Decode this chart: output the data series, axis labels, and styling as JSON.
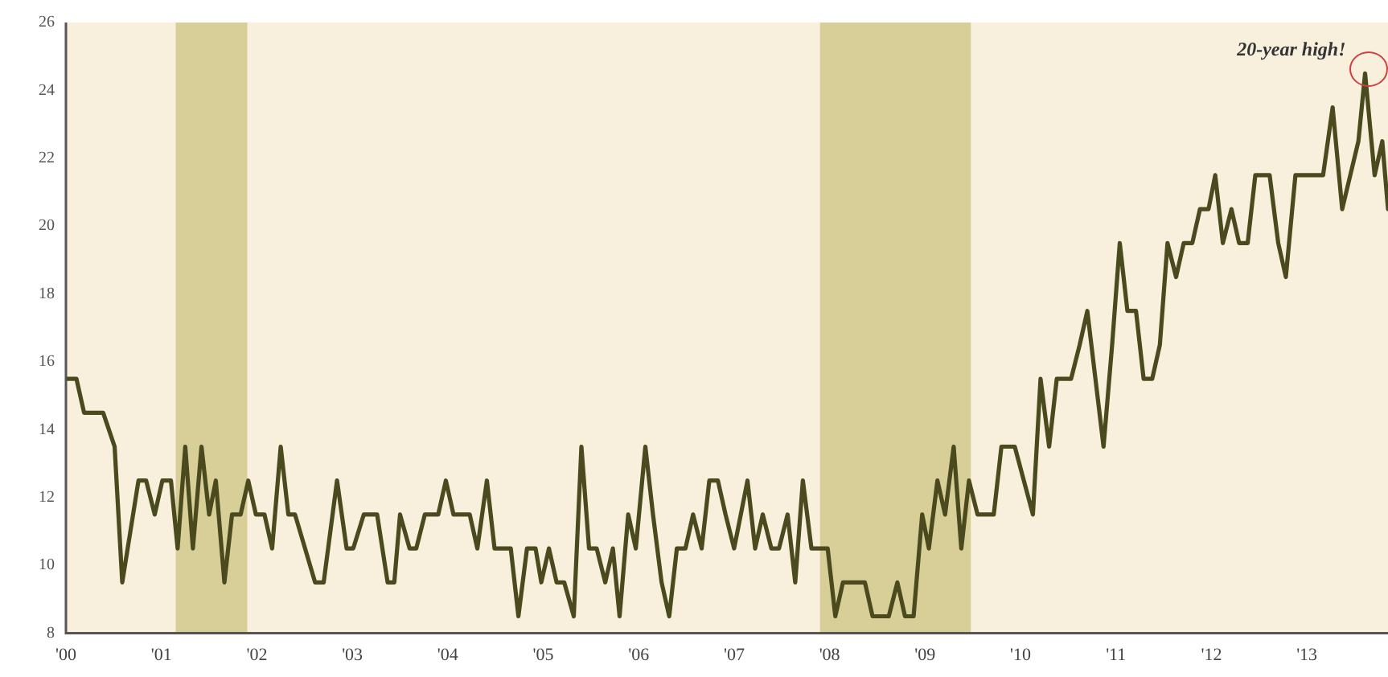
{
  "chart_data": {
    "type": "line",
    "color": "#4a4a1e",
    "marker": "none",
    "line_style": "solid",
    "grid": false,
    "legend": false,
    "x": [
      2000,
      2000.11,
      2000.19,
      2000.39,
      2000.45,
      2000.51,
      2000.59,
      2000.76,
      2000.84,
      2000.93,
      2001.01,
      2001.1,
      2001.17,
      2001.25,
      2001.33,
      2001.42,
      2001.5,
      2001.57,
      2001.66,
      2001.74,
      2001.83,
      2001.91,
      2001.99,
      2002.08,
      2002.16,
      2002.25,
      2002.33,
      2002.4,
      2002.61,
      2002.7,
      2002.84,
      2002.94,
      2003.01,
      2003.12,
      2003.26,
      2003.37,
      2003.44,
      2003.5,
      2003.6,
      2003.67,
      2003.76,
      2003.9,
      2003.98,
      2004.06,
      2004.23,
      2004.31,
      2004.41,
      2004.49,
      2004.66,
      2004.74,
      2004.83,
      2004.92,
      2004.98,
      2005.06,
      2005.14,
      2005.22,
      2005.32,
      2005.4,
      2005.48,
      2005.56,
      2005.65,
      2005.73,
      2005.8,
      2005.89,
      2005.97,
      2006.07,
      2006.15,
      2006.24,
      2006.32,
      2006.4,
      2006.49,
      2006.57,
      2006.66,
      2006.74,
      2006.83,
      2006.91,
      2007,
      2007.14,
      2007.22,
      2007.3,
      2007.39,
      2007.47,
      2007.56,
      2007.64,
      2007.72,
      2007.81,
      2007.98,
      2008.06,
      2008.14,
      2008.37,
      2008.45,
      2008.62,
      2008.71,
      2008.79,
      2008.88,
      2008.97,
      2009.04,
      2009.13,
      2009.21,
      2009.3,
      2009.38,
      2009.46,
      2009.55,
      2009.72,
      2009.8,
      2009.94,
      2010.13,
      2010.21,
      2010.3,
      2010.38,
      2010.53,
      2010.62,
      2010.7,
      2010.87,
      2010.96,
      2011.04,
      2011.12,
      2011.21,
      2011.29,
      2011.38,
      2011.46,
      2011.54,
      2011.63,
      2011.71,
      2011.8,
      2011.88,
      2011.97,
      2012.04,
      2012.12,
      2012.21,
      2012.29,
      2012.38,
      2012.46,
      2012.61,
      2012.7,
      2012.78,
      2012.88,
      2013.17,
      2013.27,
      2013.37,
      2013.54,
      2013.61,
      2013.71,
      2013.79,
      2013.85
    ],
    "values": [
      15.5,
      15.5,
      14.5,
      14.5,
      14,
      13.5,
      9.5,
      12.5,
      12.5,
      11.5,
      12.5,
      12.5,
      10.5,
      13.5,
      10.5,
      13.5,
      11.5,
      12.5,
      9.5,
      11.5,
      11.5,
      12.5,
      11.5,
      11.5,
      10.5,
      13.5,
      11.5,
      11.5,
      9.5,
      9.5,
      12.5,
      10.5,
      10.5,
      11.5,
      11.5,
      9.5,
      9.5,
      11.5,
      10.5,
      10.5,
      11.5,
      11.5,
      12.5,
      11.5,
      11.5,
      10.5,
      12.5,
      10.5,
      10.5,
      8.5,
      10.5,
      10.5,
      9.5,
      10.5,
      9.5,
      9.5,
      8.5,
      13.5,
      10.5,
      10.5,
      9.5,
      10.5,
      8.5,
      11.5,
      10.5,
      13.5,
      11.5,
      9.5,
      8.5,
      10.5,
      10.5,
      11.5,
      10.5,
      12.5,
      12.5,
      11.5,
      10.5,
      12.5,
      10.5,
      11.5,
      10.5,
      10.5,
      11.5,
      9.5,
      12.5,
      10.5,
      10.5,
      8.5,
      9.5,
      9.5,
      8.5,
      8.5,
      9.5,
      8.5,
      8.5,
      11.5,
      10.5,
      12.5,
      11.5,
      13.5,
      10.5,
      12.5,
      11.5,
      11.5,
      13.5,
      13.5,
      11.5,
      15.5,
      13.5,
      15.5,
      15.5,
      16.5,
      17.5,
      13.5,
      16.5,
      19.5,
      17.5,
      17.5,
      15.5,
      15.5,
      16.5,
      19.5,
      18.5,
      19.5,
      19.5,
      20.5,
      20.5,
      21.5,
      19.5,
      20.5,
      19.5,
      19.5,
      21.5,
      21.5,
      19.5,
      18.5,
      21.5,
      21.5,
      23.5,
      20.5,
      22.5,
      24.5,
      21.5,
      22.5,
      20.5
    ],
    "xlim": [
      2000,
      2013.85
    ],
    "xticks": [
      {
        "value": 2000,
        "label": "'00"
      },
      {
        "value": 2001,
        "label": "'01"
      },
      {
        "value": 2002,
        "label": "'02"
      },
      {
        "value": 2003,
        "label": "'03"
      },
      {
        "value": 2004,
        "label": "'04"
      },
      {
        "value": 2005,
        "label": "'05"
      },
      {
        "value": 2006,
        "label": "'06"
      },
      {
        "value": 2007,
        "label": "'07"
      },
      {
        "value": 2008,
        "label": "'08"
      },
      {
        "value": 2009,
        "label": "'09"
      },
      {
        "value": 2010,
        "label": "'10"
      },
      {
        "value": 2011,
        "label": "'11"
      },
      {
        "value": 2012,
        "label": "'12"
      },
      {
        "value": 2013,
        "label": "'13"
      }
    ],
    "ylim": [
      8,
      26
    ],
    "yticks": [
      8,
      10,
      12,
      14,
      16,
      18,
      20,
      22,
      24,
      26
    ],
    "bands": [
      {
        "axis": "x",
        "from": 2001.15,
        "to": 2001.9,
        "color": "#d8cf98"
      },
      {
        "axis": "x",
        "from": 2007.9,
        "to": 2009.48,
        "color": "#d8cf98"
      }
    ],
    "annotations": [
      {
        "text": "20-year high!",
        "x": 2013.61,
        "y": 24.5
      }
    ]
  }
}
